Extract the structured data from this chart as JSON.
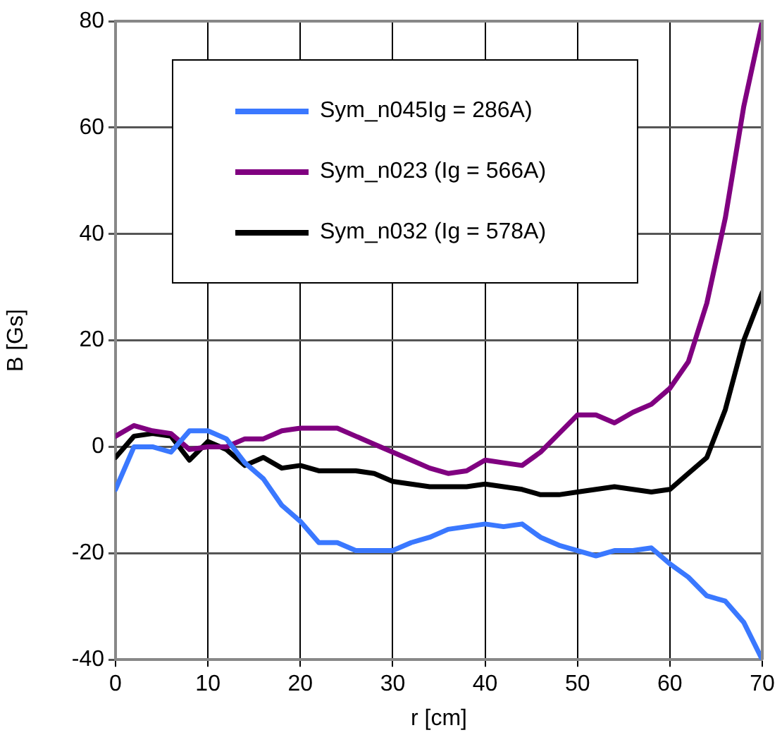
{
  "chart_data": {
    "type": "line",
    "xlabel": "r [cm]",
    "ylabel": "B [Gs]",
    "x": [
      0,
      2,
      4,
      6,
      8,
      10,
      12,
      14,
      16,
      18,
      20,
      22,
      24,
      26,
      28,
      30,
      32,
      34,
      36,
      38,
      40,
      42,
      44,
      46,
      48,
      50,
      52,
      54,
      56,
      58,
      60,
      62,
      64,
      66,
      68,
      70
    ],
    "xlim": [
      0,
      70
    ],
    "xticks": [
      0,
      10,
      20,
      30,
      40,
      50,
      60,
      70
    ],
    "ylim": [
      -40,
      80
    ],
    "yticks": [
      -40,
      -20,
      0,
      20,
      40,
      60,
      80
    ],
    "grid": true,
    "legend": "top",
    "marker": "none",
    "line_style": "solid",
    "series": [
      {
        "name": "Sym_n045Ig = 286A)",
        "color": "#3a78ff",
        "values": [
          -8,
          0,
          0,
          -1,
          3,
          3,
          1.5,
          -3,
          -6,
          -11,
          -14,
          -18,
          -18,
          -19.5,
          -19.5,
          -19.5,
          -18,
          -17,
          -15.5,
          -15,
          -14.5,
          -15,
          -14.5,
          -17,
          -18.5,
          -19.5,
          -20.5,
          -19.5,
          -19.5,
          -19,
          -22,
          -24.5,
          -28,
          -29,
          -33,
          -40
        ]
      },
      {
        "name": "Sym_n023 (Ig = 566A)",
        "color": "#800080",
        "values": [
          2,
          4,
          3,
          2.5,
          -0.5,
          0,
          0,
          1.5,
          1.5,
          3,
          3.5,
          3.5,
          3.5,
          2,
          0.5,
          -1,
          -2.5,
          -4,
          -5,
          -4.5,
          -2.5,
          -3,
          -3.5,
          -1,
          2.5,
          6,
          6,
          4.5,
          6.5,
          8,
          11,
          16,
          27,
          43,
          64,
          80
        ]
      },
      {
        "name": "Sym_n032 (Ig = 578A)",
        "color": "#000000",
        "values": [
          -2,
          2,
          2.5,
          2,
          -2.5,
          1,
          -0.5,
          -3.5,
          -2,
          -4,
          -3.5,
          -4.5,
          -4.5,
          -4.5,
          -5,
          -6.5,
          -7,
          -7.5,
          -7.5,
          -7.5,
          -7,
          -7.5,
          -8,
          -9,
          -9,
          -8.5,
          -8,
          -7.5,
          -8,
          -8.5,
          -8,
          -5,
          -2,
          7,
          20,
          29
        ]
      }
    ]
  }
}
